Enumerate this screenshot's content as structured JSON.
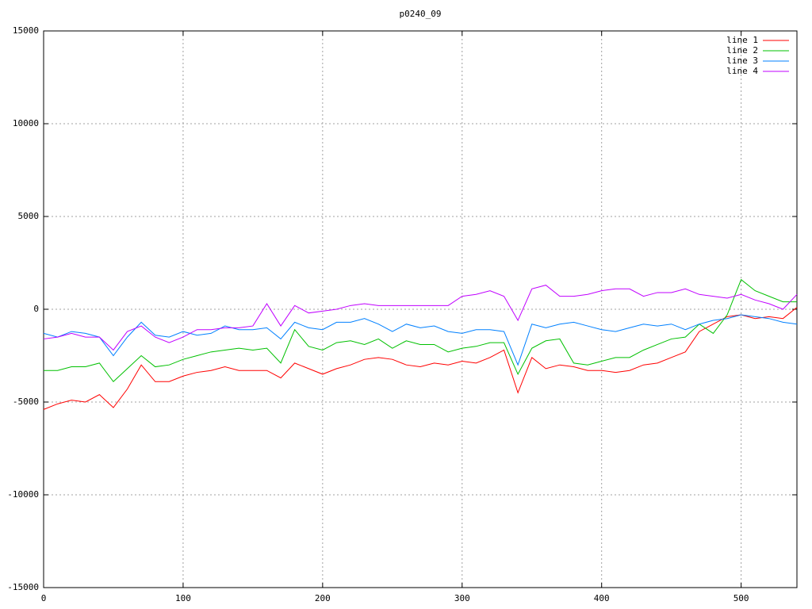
{
  "chart_data": {
    "type": "line",
    "title": "p0240_09",
    "x": [
      0,
      10,
      20,
      30,
      40,
      50,
      60,
      70,
      80,
      90,
      100,
      110,
      120,
      130,
      140,
      150,
      160,
      170,
      180,
      190,
      200,
      210,
      220,
      230,
      240,
      250,
      260,
      270,
      280,
      290,
      300,
      310,
      320,
      330,
      340,
      350,
      360,
      370,
      380,
      390,
      400,
      410,
      420,
      430,
      440,
      450,
      460,
      470,
      480,
      490,
      500,
      510,
      520,
      530,
      540
    ],
    "series": [
      {
        "name": "line 1",
        "color": "#ff0000",
        "values": [
          -5400,
          -5100,
          -4900,
          -5000,
          -4600,
          -5300,
          -4300,
          -3000,
          -3900,
          -3900,
          -3600,
          -3400,
          -3300,
          -3100,
          -3300,
          -3300,
          -3300,
          -3700,
          -2900,
          -3200,
          -3500,
          -3200,
          -3000,
          -2700,
          -2600,
          -2700,
          -3000,
          -3100,
          -2900,
          -3000,
          -2800,
          -2900,
          -2600,
          -2200,
          -4500,
          -2600,
          -3200,
          -3000,
          -3100,
          -3300,
          -3300,
          -3400,
          -3300,
          -3000,
          -2900,
          -2600,
          -2300,
          -1200,
          -800,
          -400,
          -300,
          -500,
          -400,
          -500,
          100
        ]
      },
      {
        "name": "line 2",
        "color": "#00c000",
        "values": [
          -3300,
          -3300,
          -3100,
          -3100,
          -2900,
          -3900,
          -3200,
          -2500,
          -3100,
          -3000,
          -2700,
          -2500,
          -2300,
          -2200,
          -2100,
          -2200,
          -2100,
          -2900,
          -1100,
          -2000,
          -2200,
          -1800,
          -1700,
          -1900,
          -1600,
          -2100,
          -1700,
          -1900,
          -1900,
          -2300,
          -2100,
          -2000,
          -1800,
          -1800,
          -3500,
          -2100,
          -1700,
          -1600,
          -2900,
          -3000,
          -2800,
          -2600,
          -2600,
          -2200,
          -1900,
          -1600,
          -1500,
          -800,
          -1300,
          -300,
          1600,
          1000,
          700,
          400,
          400
        ]
      },
      {
        "name": "line 3",
        "color": "#0080ff",
        "values": [
          -1300,
          -1500,
          -1200,
          -1300,
          -1500,
          -2500,
          -1500,
          -700,
          -1400,
          -1500,
          -1200,
          -1400,
          -1300,
          -900,
          -1100,
          -1100,
          -1000,
          -1600,
          -700,
          -1000,
          -1100,
          -700,
          -700,
          -500,
          -800,
          -1200,
          -800,
          -1000,
          -900,
          -1200,
          -1300,
          -1100,
          -1100,
          -1200,
          -3000,
          -800,
          -1000,
          -800,
          -700,
          -900,
          -1100,
          -1200,
          -1000,
          -800,
          -900,
          -800,
          -1100,
          -800,
          -600,
          -500,
          -300,
          -400,
          -500,
          -700,
          -800
        ]
      },
      {
        "name": "line 4",
        "color": "#c000ff",
        "values": [
          -1600,
          -1500,
          -1300,
          -1500,
          -1500,
          -2200,
          -1200,
          -900,
          -1500,
          -1800,
          -1500,
          -1100,
          -1100,
          -1000,
          -1000,
          -900,
          300,
          -900,
          200,
          -200,
          -100,
          0,
          200,
          300,
          200,
          200,
          200,
          200,
          200,
          200,
          700,
          800,
          1000,
          700,
          -600,
          1100,
          1300,
          700,
          700,
          800,
          1000,
          1100,
          1100,
          700,
          900,
          900,
          1100,
          800,
          700,
          600,
          800,
          500,
          300,
          0,
          800
        ]
      }
    ],
    "xlim": [
      0,
      540
    ],
    "xticks": [
      0,
      100,
      200,
      300,
      400,
      500
    ],
    "ylim": [
      -15000,
      15000
    ],
    "yticks": [
      -15000,
      -10000,
      -5000,
      0,
      5000,
      10000,
      15000
    ],
    "grid": true,
    "legend": "top-right"
  }
}
